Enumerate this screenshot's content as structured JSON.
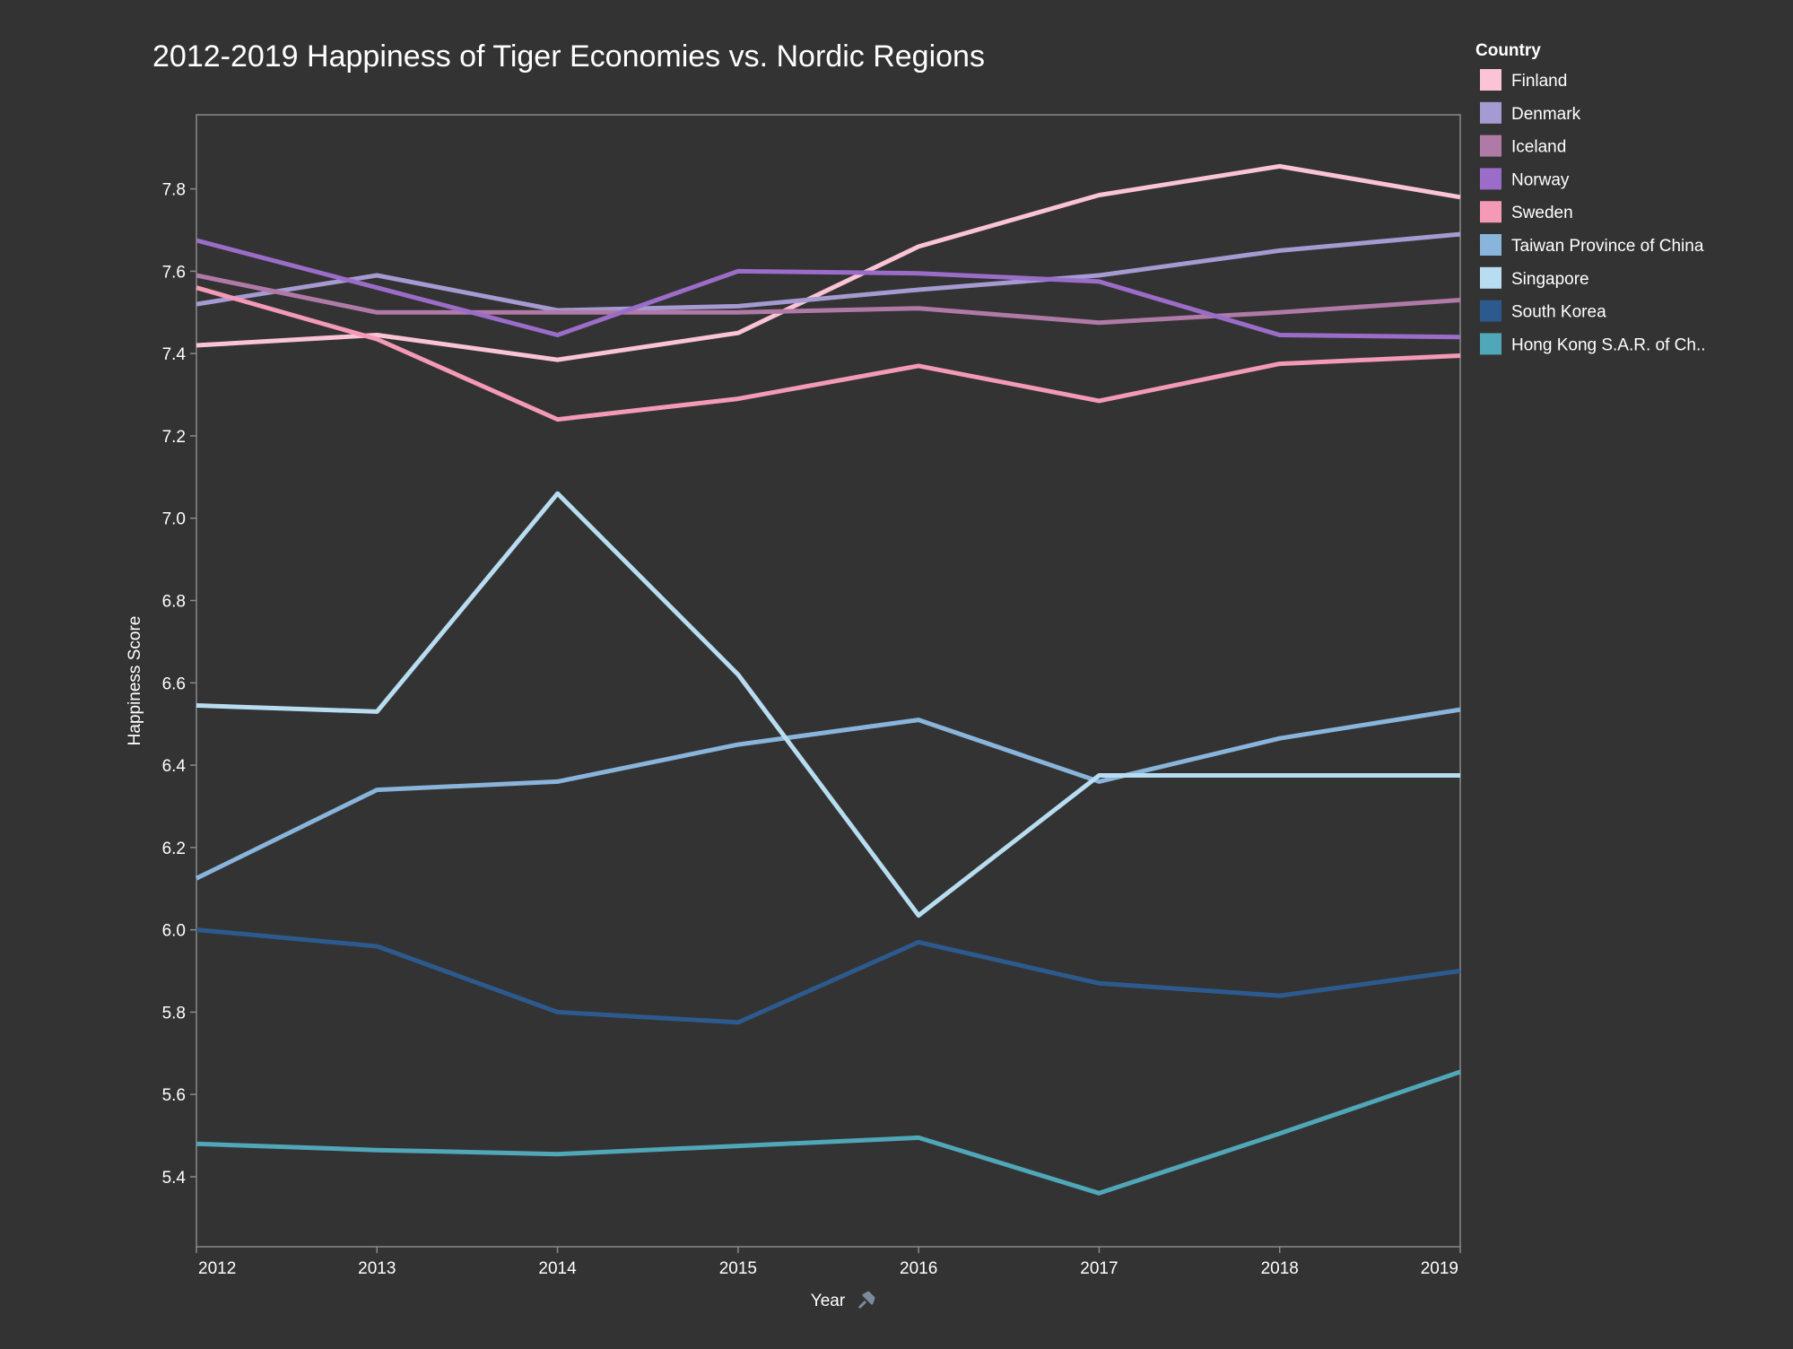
{
  "chart_data": {
    "type": "line",
    "title": "2012-2019 Happiness of Tiger Economies vs. Nordic Regions",
    "xlabel": "Year",
    "ylabel": "Happiness Score",
    "x": [
      2012,
      2013,
      2014,
      2015,
      2016,
      2017,
      2018,
      2019
    ],
    "x_tick_labels": [
      "2012",
      "2013",
      "2014",
      "2015",
      "2016",
      "2017",
      "2018",
      "2019"
    ],
    "ylim": [
      5.23,
      7.98
    ],
    "y_ticks": [
      5.4,
      5.6,
      5.8,
      6.0,
      6.2,
      6.4,
      6.6,
      6.8,
      7.0,
      7.2,
      7.4,
      7.6,
      7.8
    ],
    "y_tick_labels": [
      "5.4",
      "5.6",
      "5.8",
      "6.0",
      "6.2",
      "6.4",
      "6.6",
      "6.8",
      "7.0",
      "7.2",
      "7.4",
      "7.6",
      "7.8"
    ],
    "grid": false,
    "legend": {
      "title": "Country",
      "placement": "top-right",
      "icon": "pin-icon"
    },
    "series": [
      {
        "name": "Finland",
        "color": "#fbc3d6",
        "values": [
          7.42,
          7.445,
          7.385,
          7.45,
          7.66,
          7.785,
          7.855,
          7.78
        ]
      },
      {
        "name": "Denmark",
        "color": "#a59ad2",
        "values": [
          7.52,
          7.59,
          7.505,
          7.515,
          7.555,
          7.59,
          7.65,
          7.69
        ]
      },
      {
        "name": "Iceland",
        "color": "#b07aa6",
        "values": [
          7.59,
          7.5,
          7.5,
          7.5,
          7.51,
          7.475,
          7.5,
          7.53
        ]
      },
      {
        "name": "Norway",
        "color": "#9b6dc9",
        "values": [
          7.675,
          7.56,
          7.445,
          7.6,
          7.595,
          7.575,
          7.445,
          7.44
        ]
      },
      {
        "name": "Sweden",
        "color": "#f49ab6",
        "values": [
          7.56,
          7.435,
          7.24,
          7.29,
          7.37,
          7.285,
          7.375,
          7.395
        ]
      },
      {
        "name": "Taiwan Province of China",
        "color": "#89b4db",
        "values": [
          6.125,
          6.34,
          6.36,
          6.45,
          6.51,
          6.36,
          6.465,
          6.535
        ]
      },
      {
        "name": "Singapore",
        "color": "#b8ddf1",
        "values": [
          6.545,
          6.53,
          7.06,
          6.62,
          6.035,
          6.375,
          6.375,
          6.375
        ]
      },
      {
        "name": "South Korea",
        "color": "#2d5a8e",
        "values": [
          6.0,
          5.96,
          5.8,
          5.775,
          5.97,
          5.87,
          5.84,
          5.9
        ]
      },
      {
        "name": "Hong Kong S.A.R. of Ch..",
        "color": "#4fa7b8",
        "values": [
          5.48,
          5.465,
          5.455,
          5.475,
          5.495,
          5.36,
          5.505,
          5.655
        ]
      }
    ]
  }
}
